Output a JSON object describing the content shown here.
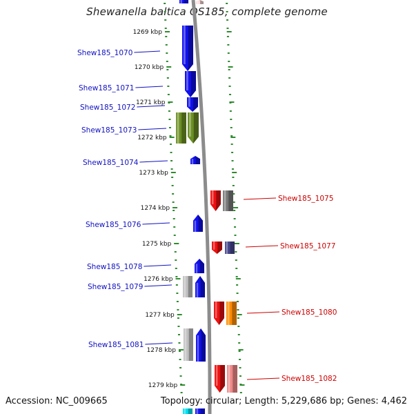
{
  "title": "Shewanella baltica OS185, complete genome",
  "footer": {
    "accession": "Accession: NC_009665",
    "topology": "Topology: circular; Length: 5,229,686 bp; Genes: 4,462"
  },
  "tick_labels": [
    "1269 kbp",
    "1270 kbp",
    "1271 kbp",
    "1272 kbp",
    "1273 kbp",
    "1274 kbp",
    "1275 kbp",
    "1276 kbp",
    "1277 kbp",
    "1278 kbp",
    "1279 kbp"
  ],
  "colors": {
    "forward_label": "#1010c0",
    "reverse_label": "#cc0000",
    "tick_dots": "#2e8b2e",
    "backbone": "#8c8c8c"
  },
  "genes": [
    {
      "id": "Shew185_1070",
      "strand": "forward",
      "color": "#1010ee"
    },
    {
      "id": "Shew185_1071",
      "strand": "forward",
      "color": "#1010ee"
    },
    {
      "id": "Shew185_1072",
      "strand": "forward",
      "color": "#1010ee"
    },
    {
      "id": "Shew185_1073",
      "strand": "forward",
      "color": "#6b8e23"
    },
    {
      "id": "Shew185_1074",
      "strand": "forward",
      "color": "#1010ee"
    },
    {
      "id": "Shew185_1075",
      "strand": "reverse",
      "color": "#ee1010"
    },
    {
      "id": "Shew185_1076",
      "strand": "forward",
      "color": "#1010ee"
    },
    {
      "id": "Shew185_1077",
      "strand": "reverse",
      "color": "#ee1010"
    },
    {
      "id": "Shew185_1078",
      "strand": "forward",
      "color": "#1010ee"
    },
    {
      "id": "Shew185_1079",
      "strand": "forward",
      "color": "#1010ee"
    },
    {
      "id": "Shew185_1080",
      "strand": "reverse",
      "color": "#ee1010"
    },
    {
      "id": "Shew185_1081",
      "strand": "forward",
      "color": "#1010ee"
    },
    {
      "id": "Shew185_1082",
      "strand": "reverse",
      "color": "#ee1010"
    }
  ]
}
